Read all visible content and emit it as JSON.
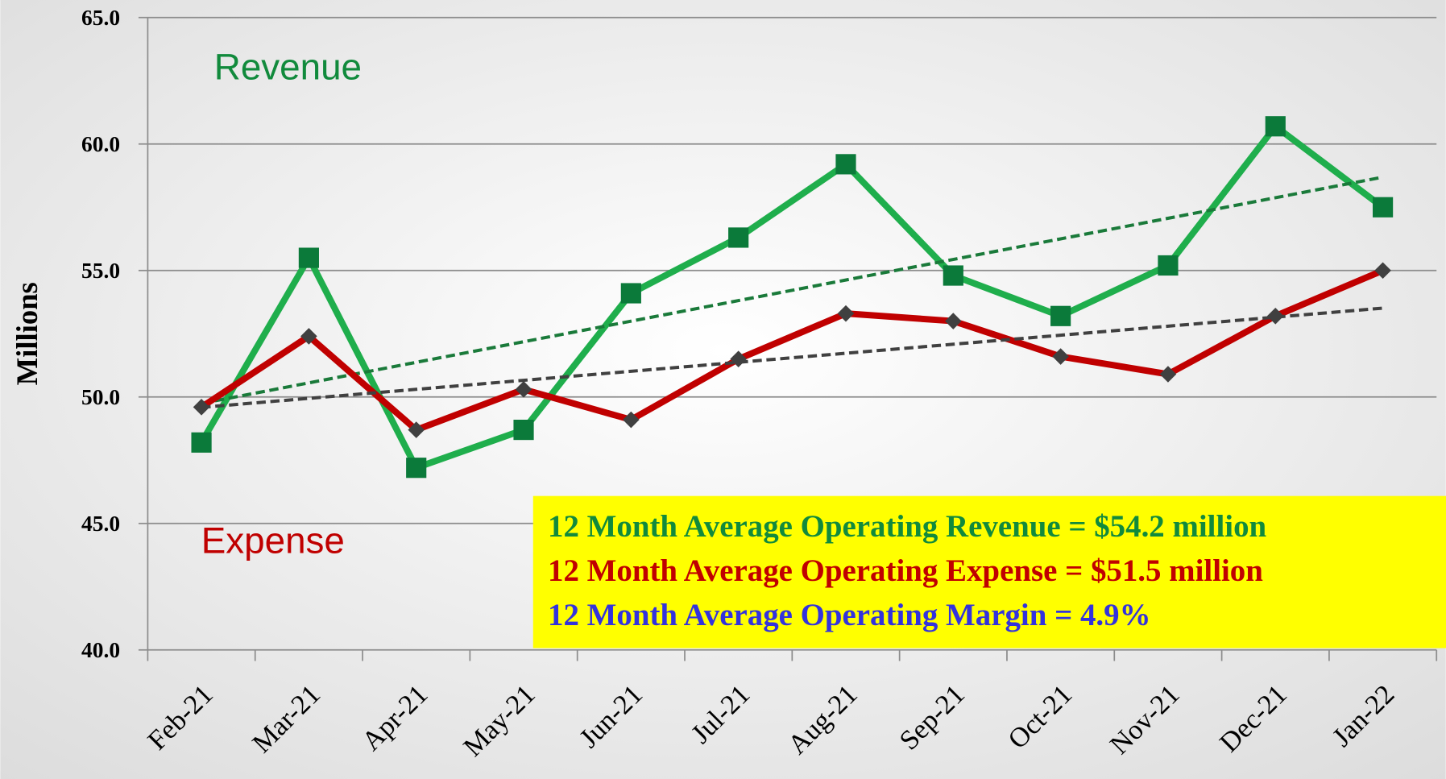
{
  "chart_data": {
    "type": "line",
    "y_label": "Millions",
    "categories": [
      "Feb-21",
      "Mar-21",
      "Apr-21",
      "May-21",
      "Jun-21",
      "Jul-21",
      "Aug-21",
      "Sep-21",
      "Oct-21",
      "Nov-21",
      "Dec-21",
      "Jan-22"
    ],
    "series": [
      {
        "name": "Revenue",
        "color": "#1fae4c",
        "marker_color": "#0b7a3a",
        "marker": "square",
        "trendline_color": "#1a7a3a",
        "values": [
          48.2,
          55.5,
          47.2,
          48.7,
          54.1,
          56.3,
          59.2,
          54.8,
          53.2,
          55.2,
          60.7,
          57.5
        ]
      },
      {
        "name": "Expense",
        "color": "#c00000",
        "marker_color": "#404040",
        "marker": "diamond",
        "trendline_color": "#404040",
        "values": [
          49.6,
          52.4,
          48.7,
          50.3,
          49.1,
          51.5,
          53.3,
          53.0,
          51.6,
          50.9,
          53.2,
          55.0
        ]
      }
    ],
    "trendline": true,
    "ylim": [
      40,
      65
    ],
    "yticks": [
      {
        "value": 40,
        "label": "40.0"
      },
      {
        "value": 45,
        "label": "45.0"
      },
      {
        "value": 50,
        "label": "50.0"
      },
      {
        "value": 55,
        "label": "55.0"
      },
      {
        "value": 60,
        "label": "60.0"
      },
      {
        "value": 65,
        "label": "65.0"
      }
    ],
    "grid": true,
    "annotations": [
      {
        "text": "12 Month Average Operating Revenue = $54.2 million",
        "color": "#118a3c"
      },
      {
        "text": "12 Month Average Operating Expense =  $51.5 million",
        "color": "#c00000"
      },
      {
        "text": "12 Month Average Operating Margin =   4.9%",
        "color": "#3333dd"
      }
    ]
  }
}
